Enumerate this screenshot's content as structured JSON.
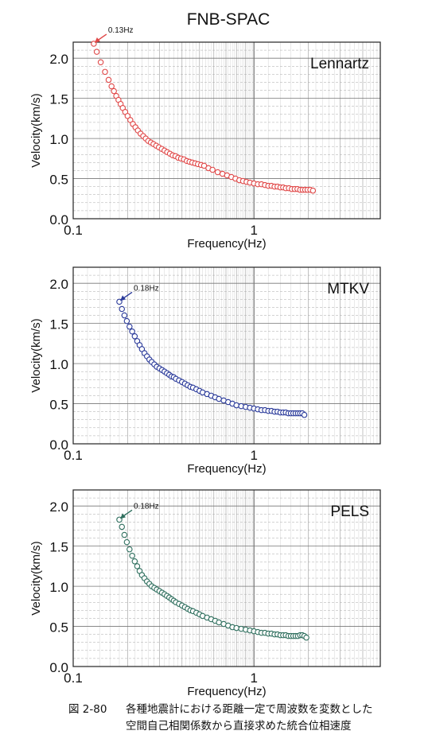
{
  "figure_title": "FNB-SPAC",
  "caption": {
    "number": "図 2-80",
    "line1": "各種地震計における距離一定で周波数を変数とした",
    "line2": "空間自己相関係数から直接求めた統合位相速度"
  },
  "chart_data": [
    {
      "type": "scatter",
      "panel_label": "Lennartz",
      "xlabel": "Frequency(Hz)",
      "ylabel": "Velocity(km/s)",
      "xscale": "log",
      "xlim": [
        0.1,
        5
      ],
      "ylim": [
        0.0,
        2.2
      ],
      "x_ticks": [
        "0.1",
        "1"
      ],
      "y_ticks": [
        "0.0",
        "0.5",
        "1.0",
        "1.5",
        "2.0"
      ],
      "grid": true,
      "marker_color": "#e04848",
      "annotation": {
        "text": "0.13Hz",
        "x": 0.13,
        "y": 2.18
      },
      "series": [
        {
          "x": [
            0.13,
            0.135,
            0.142,
            0.15,
            0.157,
            0.163,
            0.168,
            0.173,
            0.178,
            0.183,
            0.188,
            0.194,
            0.2,
            0.207,
            0.214,
            0.221,
            0.228,
            0.236,
            0.244,
            0.252,
            0.26,
            0.269,
            0.278,
            0.288,
            0.298,
            0.309,
            0.32,
            0.331,
            0.343,
            0.355,
            0.368,
            0.381,
            0.395,
            0.41,
            0.425,
            0.44,
            0.456,
            0.473,
            0.49,
            0.51,
            0.53,
            0.56,
            0.59,
            0.63,
            0.67,
            0.71,
            0.75,
            0.79,
            0.83,
            0.87,
            0.91,
            0.95,
            1.0,
            1.05,
            1.1,
            1.15,
            1.2,
            1.25,
            1.3,
            1.35,
            1.4,
            1.45,
            1.5,
            1.56,
            1.62,
            1.68,
            1.74,
            1.8,
            1.86,
            1.92,
            1.98,
            2.05,
            2.12
          ],
          "y": [
            2.18,
            2.08,
            1.95,
            1.83,
            1.73,
            1.65,
            1.59,
            1.53,
            1.48,
            1.43,
            1.38,
            1.33,
            1.28,
            1.23,
            1.18,
            1.14,
            1.1,
            1.06,
            1.03,
            1.0,
            0.97,
            0.95,
            0.93,
            0.91,
            0.89,
            0.87,
            0.85,
            0.83,
            0.81,
            0.79,
            0.78,
            0.76,
            0.75,
            0.74,
            0.72,
            0.71,
            0.7,
            0.69,
            0.68,
            0.67,
            0.66,
            0.63,
            0.61,
            0.58,
            0.56,
            0.54,
            0.52,
            0.5,
            0.48,
            0.47,
            0.46,
            0.45,
            0.44,
            0.43,
            0.43,
            0.42,
            0.41,
            0.41,
            0.4,
            0.4,
            0.39,
            0.39,
            0.38,
            0.38,
            0.37,
            0.37,
            0.37,
            0.36,
            0.36,
            0.36,
            0.36,
            0.36,
            0.35
          ]
        }
      ]
    },
    {
      "type": "scatter",
      "panel_label": "MTKV",
      "xlabel": "Frequency(Hz)",
      "ylabel": "Velocity(km/s)",
      "xscale": "log",
      "xlim": [
        0.1,
        5
      ],
      "ylim": [
        0.0,
        2.2
      ],
      "x_ticks": [
        "0.1",
        "1"
      ],
      "y_ticks": [
        "0.0",
        "0.5",
        "1.0",
        "1.5",
        "2.0"
      ],
      "grid": true,
      "marker_color": "#2a3a9a",
      "annotation": {
        "text": "0.18Hz",
        "x": 0.18,
        "y": 1.77
      },
      "series": [
        {
          "x": [
            0.18,
            0.186,
            0.192,
            0.198,
            0.205,
            0.212,
            0.219,
            0.226,
            0.233,
            0.24,
            0.248,
            0.256,
            0.264,
            0.272,
            0.281,
            0.29,
            0.3,
            0.31,
            0.32,
            0.33,
            0.34,
            0.35,
            0.36,
            0.37,
            0.385,
            0.4,
            0.415,
            0.43,
            0.445,
            0.46,
            0.48,
            0.5,
            0.52,
            0.55,
            0.58,
            0.61,
            0.64,
            0.68,
            0.72,
            0.76,
            0.8,
            0.85,
            0.9,
            0.95,
            1.0,
            1.05,
            1.1,
            1.15,
            1.2,
            1.25,
            1.3,
            1.35,
            1.4,
            1.45,
            1.5,
            1.55,
            1.6,
            1.65,
            1.7,
            1.75,
            1.8,
            1.85,
            1.9
          ],
          "y": [
            1.77,
            1.68,
            1.6,
            1.53,
            1.46,
            1.4,
            1.34,
            1.28,
            1.23,
            1.18,
            1.13,
            1.09,
            1.05,
            1.02,
            0.99,
            0.96,
            0.94,
            0.92,
            0.9,
            0.88,
            0.86,
            0.84,
            0.83,
            0.81,
            0.79,
            0.77,
            0.75,
            0.73,
            0.71,
            0.7,
            0.68,
            0.66,
            0.64,
            0.62,
            0.6,
            0.58,
            0.56,
            0.54,
            0.52,
            0.5,
            0.48,
            0.47,
            0.46,
            0.45,
            0.44,
            0.43,
            0.42,
            0.42,
            0.41,
            0.41,
            0.4,
            0.4,
            0.39,
            0.39,
            0.39,
            0.38,
            0.38,
            0.38,
            0.38,
            0.38,
            0.38,
            0.38,
            0.36
          ]
        }
      ]
    },
    {
      "type": "scatter",
      "panel_label": "PELS",
      "xlabel": "Frequency(Hz)",
      "ylabel": "Velocity(km/s)",
      "xscale": "log",
      "xlim": [
        0.1,
        5
      ],
      "ylim": [
        0.0,
        2.2
      ],
      "x_ticks": [
        "0.1",
        "1"
      ],
      "y_ticks": [
        "0.0",
        "0.5",
        "1.0",
        "1.5",
        "2.0"
      ],
      "grid": true,
      "marker_color": "#2f6f5e",
      "annotation": {
        "text": "0.18Hz",
        "x": 0.18,
        "y": 1.83
      },
      "series": [
        {
          "x": [
            0.18,
            0.186,
            0.192,
            0.198,
            0.205,
            0.212,
            0.219,
            0.226,
            0.233,
            0.24,
            0.248,
            0.256,
            0.264,
            0.272,
            0.281,
            0.29,
            0.3,
            0.31,
            0.32,
            0.33,
            0.34,
            0.35,
            0.36,
            0.37,
            0.385,
            0.4,
            0.415,
            0.43,
            0.445,
            0.46,
            0.48,
            0.5,
            0.52,
            0.55,
            0.58,
            0.61,
            0.64,
            0.68,
            0.72,
            0.76,
            0.8,
            0.85,
            0.9,
            0.95,
            1.0,
            1.05,
            1.1,
            1.15,
            1.2,
            1.25,
            1.3,
            1.35,
            1.4,
            1.45,
            1.5,
            1.55,
            1.6,
            1.65,
            1.7,
            1.75,
            1.8,
            1.85,
            1.9,
            1.95
          ],
          "y": [
            1.83,
            1.74,
            1.64,
            1.55,
            1.46,
            1.38,
            1.31,
            1.25,
            1.19,
            1.14,
            1.1,
            1.06,
            1.03,
            1.0,
            0.98,
            0.96,
            0.94,
            0.92,
            0.9,
            0.88,
            0.86,
            0.84,
            0.82,
            0.8,
            0.78,
            0.76,
            0.74,
            0.72,
            0.7,
            0.69,
            0.67,
            0.65,
            0.63,
            0.61,
            0.59,
            0.57,
            0.55,
            0.53,
            0.51,
            0.49,
            0.48,
            0.47,
            0.46,
            0.45,
            0.44,
            0.43,
            0.42,
            0.42,
            0.41,
            0.41,
            0.4,
            0.4,
            0.39,
            0.39,
            0.39,
            0.38,
            0.38,
            0.38,
            0.38,
            0.38,
            0.39,
            0.39,
            0.38,
            0.36
          ]
        }
      ]
    }
  ]
}
